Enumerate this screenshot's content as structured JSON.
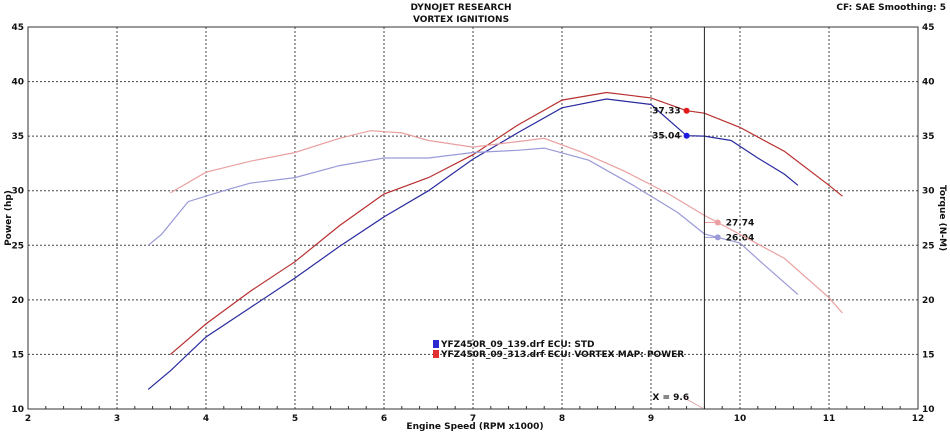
{
  "chart_data": {
    "type": "line",
    "title": "DYNOJET RESEARCH",
    "subtitle": "VORTEX IGNITIONS",
    "info": "CF: SAE  Smoothing: 5",
    "xlabel": "Engine Speed (RPM x1000)",
    "ylabel": "Power (hp)",
    "y2label": "Torque (N-M)",
    "xlim": [
      2,
      12
    ],
    "ylim": [
      10,
      45
    ],
    "x_ticks": [
      "2",
      "3",
      "4",
      "5",
      "6",
      "7",
      "8",
      "9",
      "10",
      "11",
      "12"
    ],
    "y_ticks": [
      "10",
      "15",
      "20",
      "25",
      "30",
      "35",
      "40",
      "45"
    ],
    "grid": true,
    "cursor": {
      "x": 9.6,
      "label": "X = 9.6"
    },
    "legend": [
      "YFZ450R_09_139.drf ECU: STD",
      "YFZ450R_09_313.drf ECU: VORTEX MAP: POWER"
    ],
    "series": [
      {
        "name": "STD power",
        "color": "#2a2aa0",
        "marker_x": 9.4,
        "marker_label": "35.04",
        "points": [
          [
            3.35,
            11.8
          ],
          [
            3.6,
            13.5
          ],
          [
            4,
            16.6
          ],
          [
            4.5,
            19.3
          ],
          [
            5,
            22
          ],
          [
            5.5,
            24.9
          ],
          [
            6,
            27.6
          ],
          [
            6.5,
            30
          ],
          [
            7,
            32.9
          ],
          [
            7.5,
            35.3
          ],
          [
            8,
            37.6
          ],
          [
            8.5,
            38.4
          ],
          [
            9,
            37.9
          ],
          [
            9.4,
            35.04
          ],
          [
            9.6,
            35
          ],
          [
            9.9,
            34.6
          ],
          [
            10.2,
            33
          ],
          [
            10.5,
            31.5
          ],
          [
            10.65,
            30.5
          ]
        ]
      },
      {
        "name": "VORTEX power",
        "color": "#b83030",
        "marker_x": 9.4,
        "marker_label": "37.33",
        "points": [
          [
            3.6,
            15
          ],
          [
            4,
            17.8
          ],
          [
            4.5,
            20.8
          ],
          [
            5,
            23.5
          ],
          [
            5.5,
            26.8
          ],
          [
            6,
            29.7
          ],
          [
            6.5,
            31.2
          ],
          [
            7,
            33.3
          ],
          [
            7.5,
            36
          ],
          [
            8,
            38.3
          ],
          [
            8.5,
            39
          ],
          [
            9,
            38.5
          ],
          [
            9.4,
            37.33
          ],
          [
            9.6,
            37.1
          ],
          [
            10,
            35.8
          ],
          [
            10.5,
            33.6
          ],
          [
            11,
            30.5
          ],
          [
            11.15,
            29.5
          ]
        ]
      },
      {
        "name": "STD torque",
        "color": "#9a9ad8",
        "marker_x": 9.75,
        "marker_label": "26.04",
        "points": [
          [
            3.35,
            25
          ],
          [
            3.5,
            26
          ],
          [
            3.8,
            29
          ],
          [
            4.2,
            30
          ],
          [
            4.5,
            30.7
          ],
          [
            5,
            31.2
          ],
          [
            5.5,
            32.3
          ],
          [
            6,
            33
          ],
          [
            6.5,
            33
          ],
          [
            7,
            33.5
          ],
          [
            7.5,
            33.7
          ],
          [
            7.8,
            33.9
          ],
          [
            8.3,
            32.8
          ],
          [
            8.8,
            30.5
          ],
          [
            9.3,
            28
          ],
          [
            9.6,
            26.04
          ],
          [
            10,
            25.2
          ],
          [
            10.3,
            23
          ],
          [
            10.65,
            20.5
          ]
        ]
      },
      {
        "name": "VORTEX torque",
        "color": "#eaa0a0",
        "marker_x": 9.75,
        "marker_label": "27.74",
        "points": [
          [
            3.6,
            29.8
          ],
          [
            4,
            31.7
          ],
          [
            4.5,
            32.7
          ],
          [
            5,
            33.5
          ],
          [
            5.5,
            34.8
          ],
          [
            5.85,
            35.5
          ],
          [
            6.2,
            35.3
          ],
          [
            6.5,
            34.6
          ],
          [
            7,
            34
          ],
          [
            7.5,
            34.5
          ],
          [
            7.8,
            34.8
          ],
          [
            8.2,
            33.6
          ],
          [
            8.7,
            31.8
          ],
          [
            9.2,
            29.7
          ],
          [
            9.6,
            27.74
          ],
          [
            10,
            26
          ],
          [
            10.5,
            23.8
          ],
          [
            11,
            20.2
          ],
          [
            11.15,
            18.8
          ]
        ]
      }
    ]
  }
}
